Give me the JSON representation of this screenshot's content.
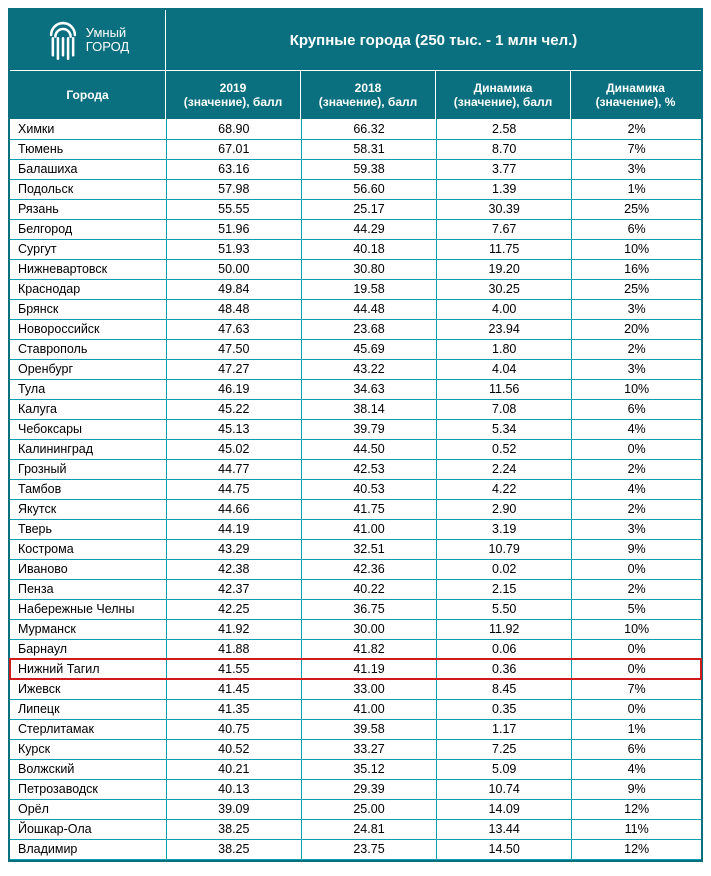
{
  "brand": {
    "line1": "Умный",
    "line2": "ГОРОД"
  },
  "title": "Крупные города (250 тыс. - 1 млн чел.)",
  "columns": {
    "city": "Города",
    "y2019_a": "2019",
    "y2019_b": "(значение), балл",
    "y2018_a": "2018",
    "y2018_b": "(значение), балл",
    "dyn_a": "Динамика",
    "dyn_b": "(значение), балл",
    "dynp_a": "Динамика",
    "dynp_b": "(значение), %"
  },
  "highlight_row_index": 27,
  "colors": {
    "header_bg": "#0a7080",
    "grid": "#0a9fae",
    "highlight": "#d11a1a",
    "text": "#000000",
    "header_text": "#ffffff"
  },
  "rows": [
    {
      "city": "Химки",
      "v2019": "68.90",
      "v2018": "66.32",
      "dyn": "2.58",
      "dynp": "2%"
    },
    {
      "city": "Тюмень",
      "v2019": "67.01",
      "v2018": "58.31",
      "dyn": "8.70",
      "dynp": "7%"
    },
    {
      "city": "Балашиха",
      "v2019": "63.16",
      "v2018": "59.38",
      "dyn": "3.77",
      "dynp": "3%"
    },
    {
      "city": "Подольск",
      "v2019": "57.98",
      "v2018": "56.60",
      "dyn": "1.39",
      "dynp": "1%"
    },
    {
      "city": "Рязань",
      "v2019": "55.55",
      "v2018": "25.17",
      "dyn": "30.39",
      "dynp": "25%"
    },
    {
      "city": "Белгород",
      "v2019": "51.96",
      "v2018": "44.29",
      "dyn": "7.67",
      "dynp": "6%"
    },
    {
      "city": "Сургут",
      "v2019": "51.93",
      "v2018": "40.18",
      "dyn": "11.75",
      "dynp": "10%"
    },
    {
      "city": "Нижневартовск",
      "v2019": "50.00",
      "v2018": "30.80",
      "dyn": "19.20",
      "dynp": "16%"
    },
    {
      "city": "Краснодар",
      "v2019": "49.84",
      "v2018": "19.58",
      "dyn": "30.25",
      "dynp": "25%"
    },
    {
      "city": "Брянск",
      "v2019": "48.48",
      "v2018": "44.48",
      "dyn": "4.00",
      "dynp": "3%"
    },
    {
      "city": "Новороссийск",
      "v2019": "47.63",
      "v2018": "23.68",
      "dyn": "23.94",
      "dynp": "20%"
    },
    {
      "city": "Ставрополь",
      "v2019": "47.50",
      "v2018": "45.69",
      "dyn": "1.80",
      "dynp": "2%"
    },
    {
      "city": "Оренбург",
      "v2019": "47.27",
      "v2018": "43.22",
      "dyn": "4.04",
      "dynp": "3%"
    },
    {
      "city": "Тула",
      "v2019": "46.19",
      "v2018": "34.63",
      "dyn": "11.56",
      "dynp": "10%"
    },
    {
      "city": "Калуга",
      "v2019": "45.22",
      "v2018": "38.14",
      "dyn": "7.08",
      "dynp": "6%"
    },
    {
      "city": "Чебоксары",
      "v2019": "45.13",
      "v2018": "39.79",
      "dyn": "5.34",
      "dynp": "4%"
    },
    {
      "city": "Калининград",
      "v2019": "45.02",
      "v2018": "44.50",
      "dyn": "0.52",
      "dynp": "0%"
    },
    {
      "city": "Грозный",
      "v2019": "44.77",
      "v2018": "42.53",
      "dyn": "2.24",
      "dynp": "2%"
    },
    {
      "city": "Тамбов",
      "v2019": "44.75",
      "v2018": "40.53",
      "dyn": "4.22",
      "dynp": "4%"
    },
    {
      "city": "Якутск",
      "v2019": "44.66",
      "v2018": "41.75",
      "dyn": "2.90",
      "dynp": "2%"
    },
    {
      "city": "Тверь",
      "v2019": "44.19",
      "v2018": "41.00",
      "dyn": "3.19",
      "dynp": "3%"
    },
    {
      "city": "Кострома",
      "v2019": "43.29",
      "v2018": "32.51",
      "dyn": "10.79",
      "dynp": "9%"
    },
    {
      "city": "Иваново",
      "v2019": "42.38",
      "v2018": "42.36",
      "dyn": "0.02",
      "dynp": "0%"
    },
    {
      "city": "Пенза",
      "v2019": "42.37",
      "v2018": "40.22",
      "dyn": "2.15",
      "dynp": "2%"
    },
    {
      "city": "Набережные Челны",
      "v2019": "42.25",
      "v2018": "36.75",
      "dyn": "5.50",
      "dynp": "5%"
    },
    {
      "city": "Мурманск",
      "v2019": "41.92",
      "v2018": "30.00",
      "dyn": "11.92",
      "dynp": "10%"
    },
    {
      "city": "Барнаул",
      "v2019": "41.88",
      "v2018": "41.82",
      "dyn": "0.06",
      "dynp": "0%"
    },
    {
      "city": "Нижний Тагил",
      "v2019": "41.55",
      "v2018": "41.19",
      "dyn": "0.36",
      "dynp": "0%"
    },
    {
      "city": "Ижевск",
      "v2019": "41.45",
      "v2018": "33.00",
      "dyn": "8.45",
      "dynp": "7%"
    },
    {
      "city": "Липецк",
      "v2019": "41.35",
      "v2018": "41.00",
      "dyn": "0.35",
      "dynp": "0%"
    },
    {
      "city": "Стерлитамак",
      "v2019": "40.75",
      "v2018": "39.58",
      "dyn": "1.17",
      "dynp": "1%"
    },
    {
      "city": "Курск",
      "v2019": "40.52",
      "v2018": "33.27",
      "dyn": "7.25",
      "dynp": "6%"
    },
    {
      "city": "Волжский",
      "v2019": "40.21",
      "v2018": "35.12",
      "dyn": "5.09",
      "dynp": "4%"
    },
    {
      "city": "Петрозаводск",
      "v2019": "40.13",
      "v2018": "29.39",
      "dyn": "10.74",
      "dynp": "9%"
    },
    {
      "city": "Орёл",
      "v2019": "39.09",
      "v2018": "25.00",
      "dyn": "14.09",
      "dynp": "12%"
    },
    {
      "city": "Йошкар-Ола",
      "v2019": "38.25",
      "v2018": "24.81",
      "dyn": "13.44",
      "dynp": "11%"
    },
    {
      "city": "Владимир",
      "v2019": "38.25",
      "v2018": "23.75",
      "dyn": "14.50",
      "dynp": "12%"
    }
  ]
}
